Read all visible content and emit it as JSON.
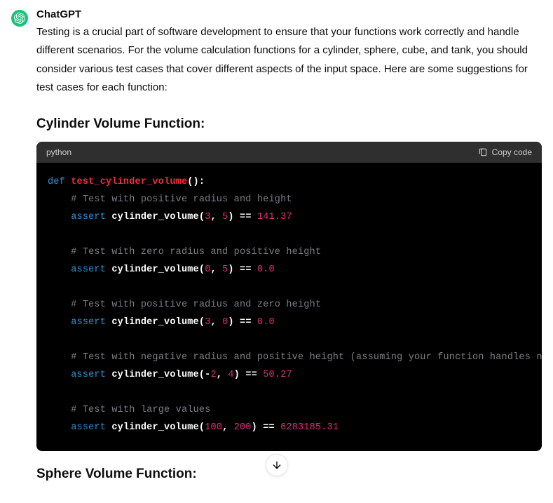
{
  "author": "ChatGPT",
  "avatar": {
    "bg": "#19c37d"
  },
  "intro": "Testing is a crucial part of software development to ensure that your functions work correctly and handle different scenarios. For the volume calculation functions for a cylinder, sphere, cube, and tank, you should consider various test cases that cover different aspects of the input space. Here are some suggestions for test cases for each function:",
  "section1_title": "Cylinder Volume Function:",
  "section2_title": "Sphere Volume Function:",
  "code": {
    "lang": "python",
    "copy_label": "Copy code",
    "syntax_colors": {
      "kw": "#2e95d3",
      "fn": "#f22c3d",
      "cm": "#7e7f85",
      "nm": "#df3079",
      "pn": "#ffffff",
      "id": "#ffffff"
    },
    "tokens": [
      [
        [
          "kw",
          "def"
        ],
        [
          "pn",
          " "
        ],
        [
          "fn",
          "test_cylinder_volume"
        ],
        [
          "pn",
          "():"
        ]
      ],
      [
        [
          "pn",
          "    "
        ],
        [
          "cm",
          "# Test with positive radius and height"
        ]
      ],
      [
        [
          "pn",
          "    "
        ],
        [
          "kw",
          "assert"
        ],
        [
          "pn",
          " "
        ],
        [
          "id",
          "cylinder_volume"
        ],
        [
          "pn",
          "("
        ],
        [
          "nm",
          "3"
        ],
        [
          "pn",
          ", "
        ],
        [
          "nm",
          "5"
        ],
        [
          "pn",
          ") == "
        ],
        [
          "nm",
          "141.37"
        ]
      ],
      [],
      [
        [
          "pn",
          "    "
        ],
        [
          "cm",
          "# Test with zero radius and positive height"
        ]
      ],
      [
        [
          "pn",
          "    "
        ],
        [
          "kw",
          "assert"
        ],
        [
          "pn",
          " "
        ],
        [
          "id",
          "cylinder_volume"
        ],
        [
          "pn",
          "("
        ],
        [
          "nm",
          "0"
        ],
        [
          "pn",
          ", "
        ],
        [
          "nm",
          "5"
        ],
        [
          "pn",
          ") == "
        ],
        [
          "nm",
          "0.0"
        ]
      ],
      [],
      [
        [
          "pn",
          "    "
        ],
        [
          "cm",
          "# Test with positive radius and zero height"
        ]
      ],
      [
        [
          "pn",
          "    "
        ],
        [
          "kw",
          "assert"
        ],
        [
          "pn",
          " "
        ],
        [
          "id",
          "cylinder_volume"
        ],
        [
          "pn",
          "("
        ],
        [
          "nm",
          "3"
        ],
        [
          "pn",
          ", "
        ],
        [
          "nm",
          "0"
        ],
        [
          "pn",
          ") == "
        ],
        [
          "nm",
          "0.0"
        ]
      ],
      [],
      [
        [
          "pn",
          "    "
        ],
        [
          "cm",
          "# Test with negative radius and positive height (assuming your function handles n"
        ]
      ],
      [
        [
          "pn",
          "    "
        ],
        [
          "kw",
          "assert"
        ],
        [
          "pn",
          " "
        ],
        [
          "id",
          "cylinder_volume"
        ],
        [
          "pn",
          "(-"
        ],
        [
          "nm",
          "2"
        ],
        [
          "pn",
          ", "
        ],
        [
          "nm",
          "4"
        ],
        [
          "pn",
          ") == "
        ],
        [
          "nm",
          "50.27"
        ]
      ],
      [],
      [
        [
          "pn",
          "    "
        ],
        [
          "cm",
          "# Test with large values"
        ]
      ],
      [
        [
          "pn",
          "    "
        ],
        [
          "kw",
          "assert"
        ],
        [
          "pn",
          " "
        ],
        [
          "id",
          "cylinder_volume"
        ],
        [
          "pn",
          "("
        ],
        [
          "nm",
          "100"
        ],
        [
          "pn",
          ", "
        ],
        [
          "nm",
          "200"
        ],
        [
          "pn",
          ") == "
        ],
        [
          "nm",
          "6283185.31"
        ]
      ]
    ]
  }
}
